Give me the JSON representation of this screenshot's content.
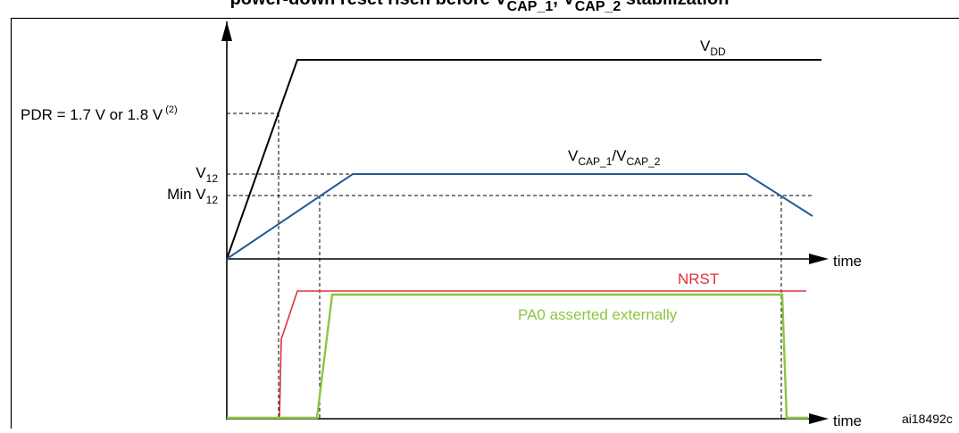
{
  "title": {
    "prefix": "power-down reset risen before V",
    "sub1": "CAP_1",
    "mid": ", V",
    "sub2": "CAP_2",
    "suffix": " stabilization"
  },
  "labels": {
    "vdd_main": "V",
    "vdd_sub": "DD",
    "vcap_main1": "V",
    "vcap_sub1": "CAP_1",
    "vcap_slash": "/V",
    "vcap_sub2": "CAP_2",
    "pdr_text": "PDR = 1.7 V or 1.8 V",
    "pdr_note": "(2)",
    "v12_main": "V",
    "v12_sub": "12",
    "minv12_main": "Min V",
    "minv12_sub": "12",
    "time_top": "time",
    "time_bottom": "time",
    "nrst": "NRST",
    "pa0": "PA0 asserted externally",
    "figure_id": "ai18492c"
  },
  "colors": {
    "vdd": "#000000",
    "vcap": "#1f5c9a",
    "nrst": "#e0303a",
    "pa0": "#8cc63f",
    "axis": "#000000",
    "dashed": "#000000"
  }
}
